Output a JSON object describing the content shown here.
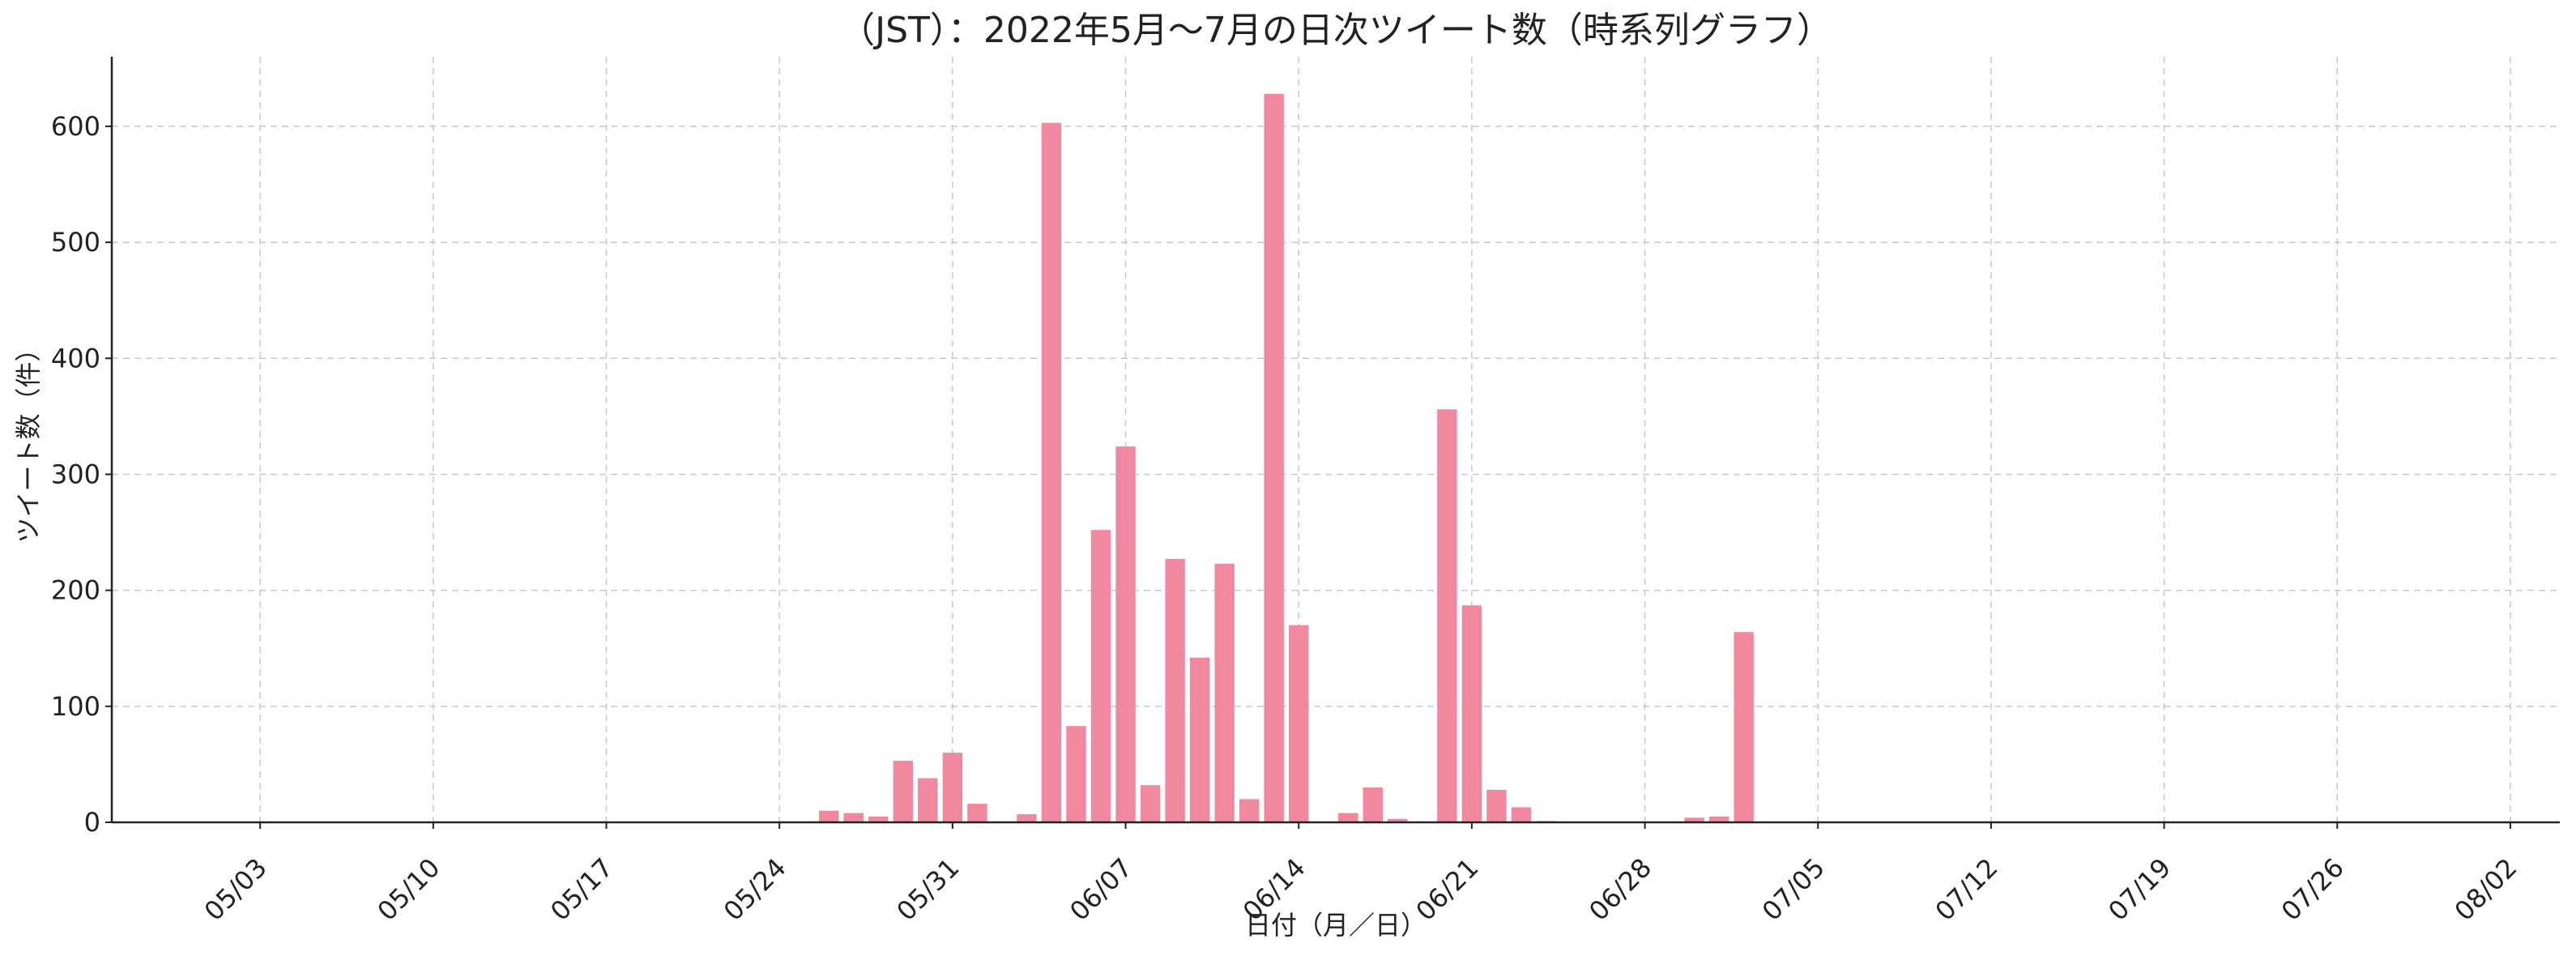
{
  "chart_data": {
    "type": "bar",
    "title": "（JST）：2022年5月～7月の日次ツイート数（時系列グラフ）",
    "xlabel": "日付（月／日）",
    "ylabel": "ツイート数（件）",
    "x_range": [
      "2022-04-27",
      "2022-08-04"
    ],
    "ylim": [
      0,
      660
    ],
    "y_ticks": [
      0,
      100,
      200,
      300,
      400,
      500,
      600
    ],
    "x_ticks": [
      {
        "date": "2022-05-03",
        "label": "05/03"
      },
      {
        "date": "2022-05-10",
        "label": "05/10"
      },
      {
        "date": "2022-05-17",
        "label": "05/17"
      },
      {
        "date": "2022-05-24",
        "label": "05/24"
      },
      {
        "date": "2022-05-31",
        "label": "05/31"
      },
      {
        "date": "2022-06-07",
        "label": "06/07"
      },
      {
        "date": "2022-06-14",
        "label": "06/14"
      },
      {
        "date": "2022-06-21",
        "label": "06/21"
      },
      {
        "date": "2022-06-28",
        "label": "06/28"
      },
      {
        "date": "2022-07-05",
        "label": "07/05"
      },
      {
        "date": "2022-07-12",
        "label": "07/12"
      },
      {
        "date": "2022-07-19",
        "label": "07/19"
      },
      {
        "date": "2022-07-26",
        "label": "07/26"
      },
      {
        "date": "2022-08-02",
        "label": "08/02"
      }
    ],
    "grid": true,
    "bar_color": "#f0899f",
    "series": [
      {
        "points": [
          {
            "date": "2022-05-26",
            "value": 10
          },
          {
            "date": "2022-05-27",
            "value": 8
          },
          {
            "date": "2022-05-28",
            "value": 5
          },
          {
            "date": "2022-05-29",
            "value": 53
          },
          {
            "date": "2022-05-30",
            "value": 38
          },
          {
            "date": "2022-05-31",
            "value": 60
          },
          {
            "date": "2022-06-01",
            "value": 16
          },
          {
            "date": "2022-06-03",
            "value": 7
          },
          {
            "date": "2022-06-04",
            "value": 603
          },
          {
            "date": "2022-06-05",
            "value": 83
          },
          {
            "date": "2022-06-06",
            "value": 252
          },
          {
            "date": "2022-06-07",
            "value": 324
          },
          {
            "date": "2022-06-08",
            "value": 32
          },
          {
            "date": "2022-06-09",
            "value": 227
          },
          {
            "date": "2022-06-10",
            "value": 142
          },
          {
            "date": "2022-06-11",
            "value": 223
          },
          {
            "date": "2022-06-12",
            "value": 20
          },
          {
            "date": "2022-06-13",
            "value": 628
          },
          {
            "date": "2022-06-14",
            "value": 170
          },
          {
            "date": "2022-06-16",
            "value": 8
          },
          {
            "date": "2022-06-17",
            "value": 30
          },
          {
            "date": "2022-06-18",
            "value": 3
          },
          {
            "date": "2022-06-20",
            "value": 356
          },
          {
            "date": "2022-06-21",
            "value": 187
          },
          {
            "date": "2022-06-22",
            "value": 28
          },
          {
            "date": "2022-06-23",
            "value": 13
          },
          {
            "date": "2022-06-24",
            "value": 1
          },
          {
            "date": "2022-06-30",
            "value": 4
          },
          {
            "date": "2022-07-01",
            "value": 5
          },
          {
            "date": "2022-07-02",
            "value": 164
          }
        ]
      }
    ]
  }
}
